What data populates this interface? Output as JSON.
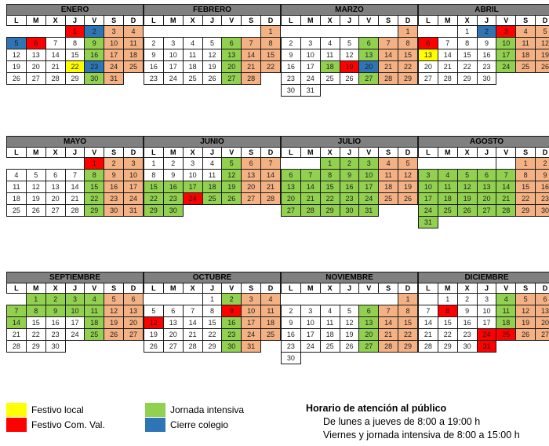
{
  "colors": {
    "yellow": "#FFFF00",
    "red": "#FF0000",
    "green": "#92D050",
    "blue": "#2E75B6",
    "orange": "#F4B183",
    "white": "#FFFFFF",
    "header_gray": "#808080",
    "border": "#1A1A1A"
  },
  "day_headers": [
    "L",
    "M",
    "X",
    "J",
    "V",
    "S",
    "D"
  ],
  "months": [
    {
      "name": "ENERO",
      "weeks": [
        [
          null,
          null,
          null,
          "1r",
          "2b",
          "3o",
          "4o"
        ],
        [
          "5b",
          "6r",
          "7w",
          "8w",
          "9g",
          "10o",
          "11o"
        ],
        [
          "12w",
          "13w",
          "14w",
          "15w",
          "16g",
          "17o",
          "18o"
        ],
        [
          "19w",
          "20w",
          "21w",
          "22y",
          "23b",
          "24o",
          "25o"
        ],
        [
          "26w",
          "27w",
          "28w",
          "29w",
          "30g",
          "31o",
          null
        ]
      ]
    },
    {
      "name": "FEBRERO",
      "weeks": [
        [
          null,
          null,
          null,
          null,
          null,
          null,
          "1o"
        ],
        [
          "2w",
          "3w",
          "4w",
          "5w",
          "6g",
          "7o",
          "8o"
        ],
        [
          "9w",
          "10w",
          "11w",
          "12w",
          "13g",
          "14o",
          "15o"
        ],
        [
          "16w",
          "17w",
          "18w",
          "19w",
          "20g",
          "21o",
          "22o"
        ],
        [
          "23w",
          "24w",
          "25w",
          "26w",
          "27g",
          "28o",
          null
        ]
      ]
    },
    {
      "name": "MARZO",
      "weeks": [
        [
          null,
          null,
          null,
          null,
          null,
          null,
          "1o"
        ],
        [
          "2w",
          "3w",
          "4w",
          "5w",
          "6g",
          "7o",
          "8o"
        ],
        [
          "9w",
          "10w",
          "11w",
          "12w",
          "13g",
          "14o",
          "15o"
        ],
        [
          "16w",
          "17w",
          "18g",
          "19r",
          "20b",
          "21o",
          "22o"
        ],
        [
          "23w",
          "24w",
          "25w",
          "26w",
          "27g",
          "28o",
          "29o"
        ],
        [
          "30w",
          "31w",
          null,
          null,
          null,
          null,
          null
        ]
      ]
    },
    {
      "name": "ABRIL",
      "weeks": [
        [
          null,
          null,
          "1w",
          "2b",
          "3r",
          "4o",
          "5o"
        ],
        [
          "6r",
          "7w",
          "8w",
          "9w",
          "10g",
          "11o",
          "12o"
        ],
        [
          "13y",
          "14w",
          "15w",
          "16w",
          "17g",
          "18o",
          "19o"
        ],
        [
          "20w",
          "21w",
          "22w",
          "23w",
          "24g",
          "25o",
          "26o"
        ],
        [
          "27w",
          "28w",
          "29w",
          "30w",
          null,
          null,
          null
        ]
      ]
    },
    {
      "name": "MAYO",
      "weeks": [
        [
          null,
          null,
          null,
          null,
          "1r",
          "2o",
          "3o"
        ],
        [
          "4w",
          "5w",
          "6w",
          "7w",
          "8g",
          "9o",
          "10o"
        ],
        [
          "11w",
          "12w",
          "13w",
          "14w",
          "15g",
          "16o",
          "17o"
        ],
        [
          "18w",
          "19w",
          "20w",
          "21w",
          "22g",
          "23o",
          "24o"
        ],
        [
          "25w",
          "26w",
          "27w",
          "28w",
          "29g",
          "30o",
          "31o"
        ]
      ]
    },
    {
      "name": "JUNIO",
      "weeks": [
        [
          "1w",
          "2w",
          "3w",
          "4w",
          "5g",
          "6o",
          "7o"
        ],
        [
          "8w",
          "9w",
          "10w",
          "11w",
          "12g",
          "13o",
          "14o"
        ],
        [
          "15g",
          "16g",
          "17g",
          "18g",
          "19g",
          "20o",
          "21o"
        ],
        [
          "22g",
          "23g",
          "24r",
          "25g",
          "26g",
          "27o",
          "28o"
        ],
        [
          "29g",
          "30g",
          null,
          null,
          null,
          null,
          null
        ]
      ]
    },
    {
      "name": "JULIO",
      "weeks": [
        [
          null,
          null,
          "1g",
          "2g",
          "3g",
          "4o",
          "5o"
        ],
        [
          "6g",
          "7g",
          "8g",
          "9g",
          "10g",
          "11o",
          "12o"
        ],
        [
          "13g",
          "14g",
          "15g",
          "16g",
          "17g",
          "18o",
          "19o"
        ],
        [
          "20g",
          "21g",
          "22g",
          "23g",
          "24g",
          "25o",
          "26o"
        ],
        [
          "27g",
          "28g",
          "29g",
          "30g",
          "31g",
          null,
          null
        ]
      ]
    },
    {
      "name": "AGOSTO",
      "weeks": [
        [
          null,
          null,
          null,
          null,
          "w",
          "1o",
          "2o"
        ],
        [
          "3g",
          "4g",
          "5g",
          "6g",
          "7g",
          "8o",
          "9o"
        ],
        [
          "10g",
          "11g",
          "12g",
          "13g",
          "14g",
          "15o",
          "16o"
        ],
        [
          "17g",
          "18g",
          "19g",
          "20g",
          "21g",
          "22o",
          "23o"
        ],
        [
          "24g",
          "25g",
          "26g",
          "27g",
          "28g",
          "29o",
          "30o"
        ],
        [
          "31g",
          null,
          null,
          null,
          null,
          null,
          null
        ]
      ]
    },
    {
      "name": "SEPTIEMBRE",
      "weeks": [
        [
          null,
          "1g",
          "2g",
          "3g",
          "4g",
          "5o",
          "6o"
        ],
        [
          "7g",
          "8g",
          "9g",
          "10g",
          "11g",
          "12o",
          "13o"
        ],
        [
          "14g",
          "15w",
          "16w",
          "17w",
          "18g",
          "19o",
          "20o"
        ],
        [
          "21w",
          "22w",
          "23w",
          "24w",
          "25g",
          "26o",
          "27o"
        ],
        [
          "28w",
          "29w",
          "30w",
          null,
          null,
          null,
          null
        ]
      ]
    },
    {
      "name": "OCTUBRE",
      "weeks": [
        [
          null,
          null,
          null,
          "1w",
          "2g",
          "3o",
          "4o"
        ],
        [
          "5w",
          "6w",
          "7w",
          "8w",
          "9r",
          "10o",
          "11o"
        ],
        [
          "12r",
          "13w",
          "14w",
          "15w",
          "16g",
          "17o",
          "18o"
        ],
        [
          "19w",
          "20w",
          "21w",
          "22w",
          "23g",
          "24o",
          "25o"
        ],
        [
          "26w",
          "27w",
          "28w",
          "29w",
          "30g",
          "31o",
          null
        ]
      ]
    },
    {
      "name": "NOVIEMBRE",
      "weeks": [
        [
          null,
          null,
          null,
          null,
          null,
          null,
          "1o"
        ],
        [
          "2w",
          "3w",
          "4w",
          "5w",
          "6g",
          "7o",
          "8o"
        ],
        [
          "9w",
          "10w",
          "11w",
          "12w",
          "13g",
          "14o",
          "15o"
        ],
        [
          "16w",
          "17w",
          "18w",
          "19w",
          "20g",
          "21o",
          "22o"
        ],
        [
          "23w",
          "24w",
          "25w",
          "26w",
          "27g",
          "28o",
          "29o"
        ],
        [
          "30w",
          null,
          null,
          null,
          null,
          null,
          null
        ]
      ]
    },
    {
      "name": "DICIEMBRE",
      "weeks": [
        [
          "w",
          "1w",
          "2w",
          "3w",
          "4g",
          "5o",
          "6o"
        ],
        [
          "7w",
          "8r",
          "9w",
          "10w",
          "11g",
          "12o",
          "13o"
        ],
        [
          "14w",
          "15w",
          "16w",
          "17w",
          "18g",
          "19o",
          "20o"
        ],
        [
          "21w",
          "22w",
          "23w",
          "24r",
          "25r",
          "26o",
          "27o"
        ],
        [
          "28w",
          "29w",
          "30w",
          "31r",
          null,
          null,
          null
        ]
      ]
    }
  ],
  "legend": {
    "items": [
      {
        "color_key": "yellow",
        "label": "Festivo local"
      },
      {
        "color_key": "red",
        "label": "Festivo Com. Val."
      },
      {
        "color_key": "green",
        "label": "Jornada intensiva"
      },
      {
        "color_key": "blue",
        "label": "Cierre colegio"
      }
    ]
  },
  "horario": {
    "title": "Horario de atención al público",
    "lines": [
      "De lunes a jueves de 8:00 a 19:00 h",
      "Viernes y jornada intensiva de 8:00 a 15:00 h"
    ]
  }
}
